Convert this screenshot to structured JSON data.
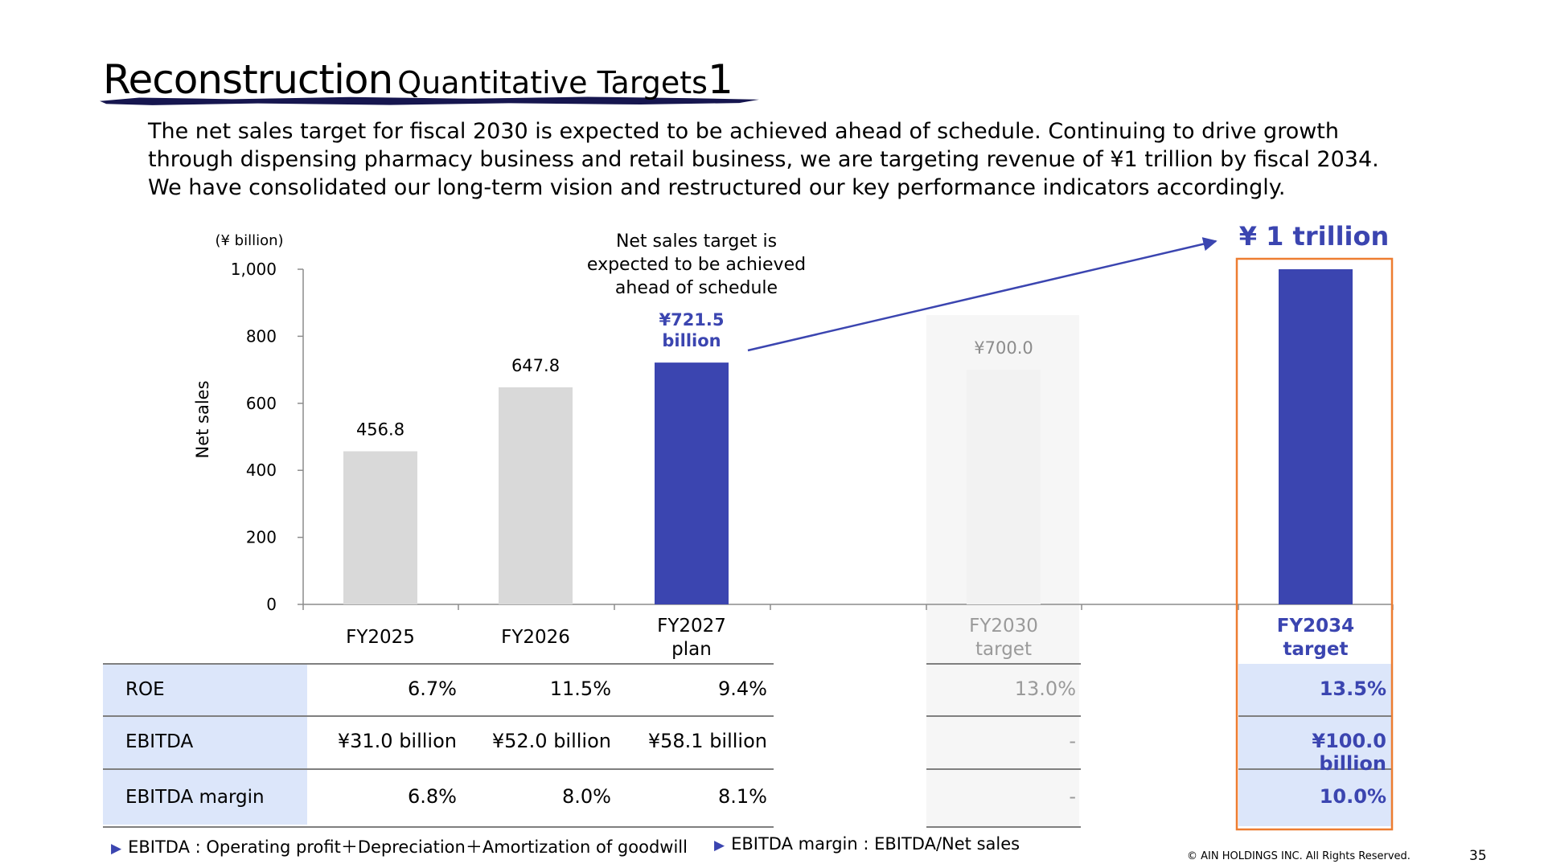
{
  "title": {
    "main": "Reconstruction",
    "sub": "Quantitative Targets",
    "number": "1"
  },
  "intro_lines": [
    "The net sales target for fiscal 2030 is expected to be achieved ahead of schedule. Continuing to drive growth",
    "through dispensing pharmacy business and retail business, we are targeting revenue of ¥1 trillion by fiscal 2034.",
    "We have consolidated our long-term vision and restructured our key performance indicators accordingly."
  ],
  "chart_data": {
    "type": "bar",
    "unit_label": "(¥ billion)",
    "ylabel": "Net sales",
    "ylim": [
      0,
      1000
    ],
    "yticks": [
      "0",
      "200",
      "400",
      "600",
      "800",
      "1,000"
    ],
    "categories": [
      [
        "FY2025"
      ],
      [
        "FY2026"
      ],
      [
        "FY2027",
        "plan"
      ],
      [
        "FY2030",
        "target"
      ],
      [
        "FY2034",
        "target"
      ]
    ],
    "values": [
      456.8,
      647.8,
      721.5,
      700.0,
      1000
    ],
    "value_labels": [
      [
        "456.8"
      ],
      [
        "647.8"
      ],
      [
        "¥721.5",
        "billion"
      ],
      [
        "¥700.0"
      ],
      []
    ],
    "bar_colors": [
      "#d9d9d9",
      "#d9d9d9",
      "#3b45b0",
      "#f2f2f2",
      "#3b45b0"
    ],
    "annotation": [
      "Net sales target is",
      "expected to be achieved",
      "ahead of schedule"
    ],
    "callout": "¥ 1 trillion"
  },
  "table": {
    "rows": [
      {
        "label": "ROE",
        "values": [
          "6.7%",
          "11.5%",
          "9.4%",
          "13.0%",
          "13.5%"
        ]
      },
      {
        "label": "EBITDA",
        "values": [
          "¥31.0 billion",
          "¥52.0 billion",
          "¥58.1 billion",
          "-",
          "¥100.0 billion"
        ]
      },
      {
        "label": "EBITDA margin",
        "values": [
          "6.8%",
          "8.0%",
          "8.1%",
          "-",
          "10.0%"
        ]
      }
    ]
  },
  "footnotes": [
    "EBITDA : Operating profit＋Depreciation＋Amortization of goodwill",
    "EBITDA margin : EBITDA/Net sales"
  ],
  "footer": {
    "copyright": "© AIN HOLDINGS INC. All Rights Reserved.",
    "page": "35"
  },
  "colors": {
    "accent": "#3b45b0",
    "highlight_border": "#ed7d31",
    "gray_bar": "#d9d9d9",
    "faded_bar": "#f2f2f2",
    "label_fill": "#dce6fa"
  }
}
